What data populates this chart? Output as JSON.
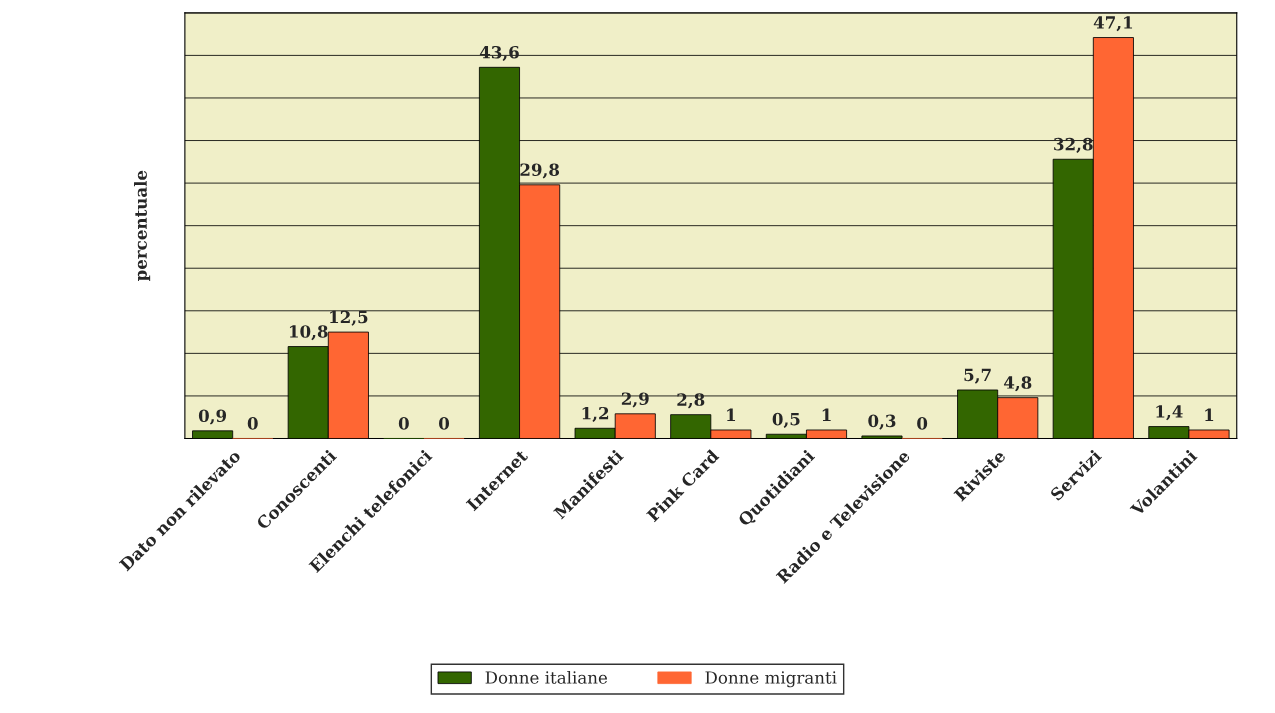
{
  "chart_data": {
    "type": "bar",
    "ylabel": "percentuale",
    "categories": [
      "Dato non rilevato",
      "Conoscenti",
      "Elenchi telefonici",
      "Internet",
      "Manifesti",
      "Pink Card",
      "Quotidiani",
      "Radio e Televisione",
      "Riviste",
      "Servizi",
      "Volantini"
    ],
    "series": [
      {
        "name": "Donne italiane",
        "color": "#336600",
        "values": [
          0.9,
          10.8,
          0,
          43.6,
          1.2,
          2.8,
          0.5,
          0.3,
          5.7,
          32.8,
          1.4
        ],
        "value_labels": [
          "0,9",
          "10,8",
          "0",
          "43,6",
          "1,2",
          "2,8",
          "0,5",
          "0,3",
          "5,7",
          "32,8",
          "1,4"
        ]
      },
      {
        "name": "Donne migranti",
        "color": "#ff6633",
        "values": [
          0,
          12.5,
          0,
          29.8,
          2.9,
          1,
          1,
          0,
          4.8,
          47.1,
          1
        ],
        "value_labels": [
          "0",
          "12,5",
          "0",
          "29,8",
          "2,9",
          "1",
          "1",
          "0",
          "4,8",
          "47,1",
          "1"
        ]
      }
    ],
    "ylim": [
      0,
      50
    ],
    "yticks": [
      {
        "value": 0,
        "label": null
      },
      {
        "value": 5,
        "label": null
      },
      {
        "value": 10,
        "label": null
      },
      {
        "value": 15,
        "label": null
      },
      {
        "value": 20,
        "label": null
      },
      {
        "value": 25,
        "label": null
      },
      {
        "value": 30,
        "label": null
      },
      {
        "value": 35,
        "label": null
      },
      {
        "value": 40,
        "label": null
      },
      {
        "value": 45,
        "label": null
      },
      {
        "value": 50,
        "label": null
      }
    ],
    "tick_labels": "x",
    "grid": "y",
    "legend": "bottom"
  }
}
